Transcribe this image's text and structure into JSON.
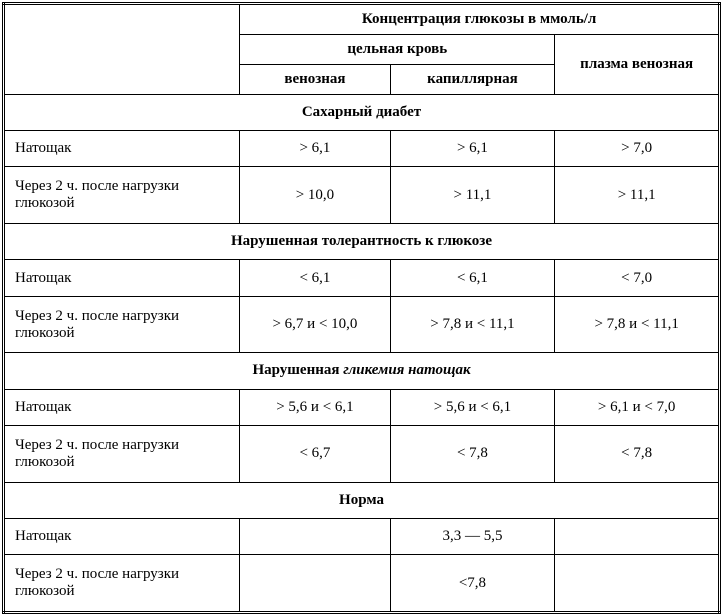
{
  "header": {
    "main": "Концентрация глюкозы в ммоль/л",
    "whole_blood": "цельная кровь",
    "plasma_venous": "плазма венозная",
    "venous": "венозная",
    "capillary": "капиллярная"
  },
  "sections": [
    {
      "title": "Сахарный диабет",
      "italic_part": "",
      "rows": [
        {
          "label": "Натощак",
          "v1": "> 6,1",
          "v2": "> 6,1",
          "v3": "> 7,0"
        },
        {
          "label": "Через 2 ч. после нагрузки глюкозой",
          "v1": "> 10,0",
          "v2": "> 11,1",
          "v3": "> 11,1"
        }
      ]
    },
    {
      "title": "Нарушенная толерантность к глюкозе",
      "italic_part": "",
      "rows": [
        {
          "label": "Натощак",
          "v1": "< 6,1",
          "v2": "< 6,1",
          "v3": "< 7,0"
        },
        {
          "label": "Через 2 ч. после нагрузки глюкозой",
          "v1": "> 6,7 и < 10,0",
          "v2": "> 7,8 и < 11,1",
          "v3": "> 7,8 и < 11,1"
        }
      ]
    },
    {
      "title": "Нарушенная ",
      "italic_part": "гликемия натощак",
      "rows": [
        {
          "label": "Натощак",
          "v1": "> 5,6 и < 6,1",
          "v2": "> 5,6 и < 6,1",
          "v3": "> 6,1 и < 7,0"
        },
        {
          "label": "Через 2 ч. после нагрузки глюкозой",
          "v1": "< 6,7",
          "v2": "< 7,8",
          "v3": "< 7,8"
        }
      ]
    },
    {
      "title": "Норма",
      "italic_part": "",
      "rows": [
        {
          "label": "Натощак",
          "v1": "",
          "v2": "3,3 — 5,5",
          "v3": ""
        },
        {
          "label": "Через 2 ч. после нагрузки глюкозой",
          "v1": "",
          "v2": "<7,8",
          "v3": ""
        }
      ]
    }
  ]
}
